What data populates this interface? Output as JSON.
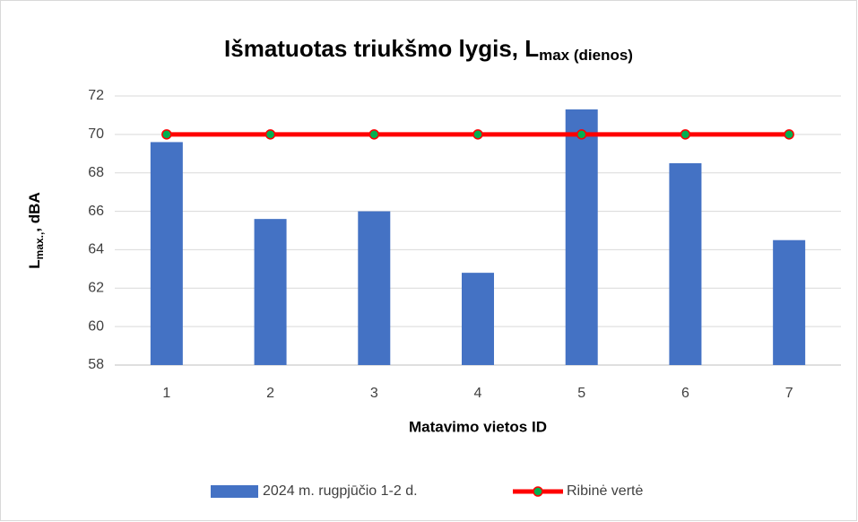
{
  "chart_data": {
    "type": "bar",
    "title": "Išmatuotas triukšmo lygis, L",
    "title_subscript": "max (dienos)",
    "x_label": "Matavimo vietos ID",
    "y_label": "L",
    "y_label_subscript": "max.,",
    "y_label_rest": ", dBA",
    "categories": [
      "1",
      "2",
      "3",
      "4",
      "5",
      "6",
      "7"
    ],
    "series": [
      {
        "name": "2024 m. rugpjūčio 1-2 d.",
        "type": "bar",
        "color": "#4472c4",
        "values": [
          69.6,
          65.6,
          66.0,
          62.8,
          71.3,
          68.5,
          64.5
        ]
      },
      {
        "name": "Ribinė vertė",
        "type": "line",
        "color": "#ff0000",
        "marker_color": "#00b050",
        "values": [
          70,
          70,
          70,
          70,
          70,
          70,
          70
        ]
      }
    ],
    "ylim": [
      58,
      72
    ],
    "yticks": [
      58,
      60,
      62,
      64,
      66,
      68,
      70,
      72
    ],
    "grid": true,
    "legend": "bottom"
  }
}
